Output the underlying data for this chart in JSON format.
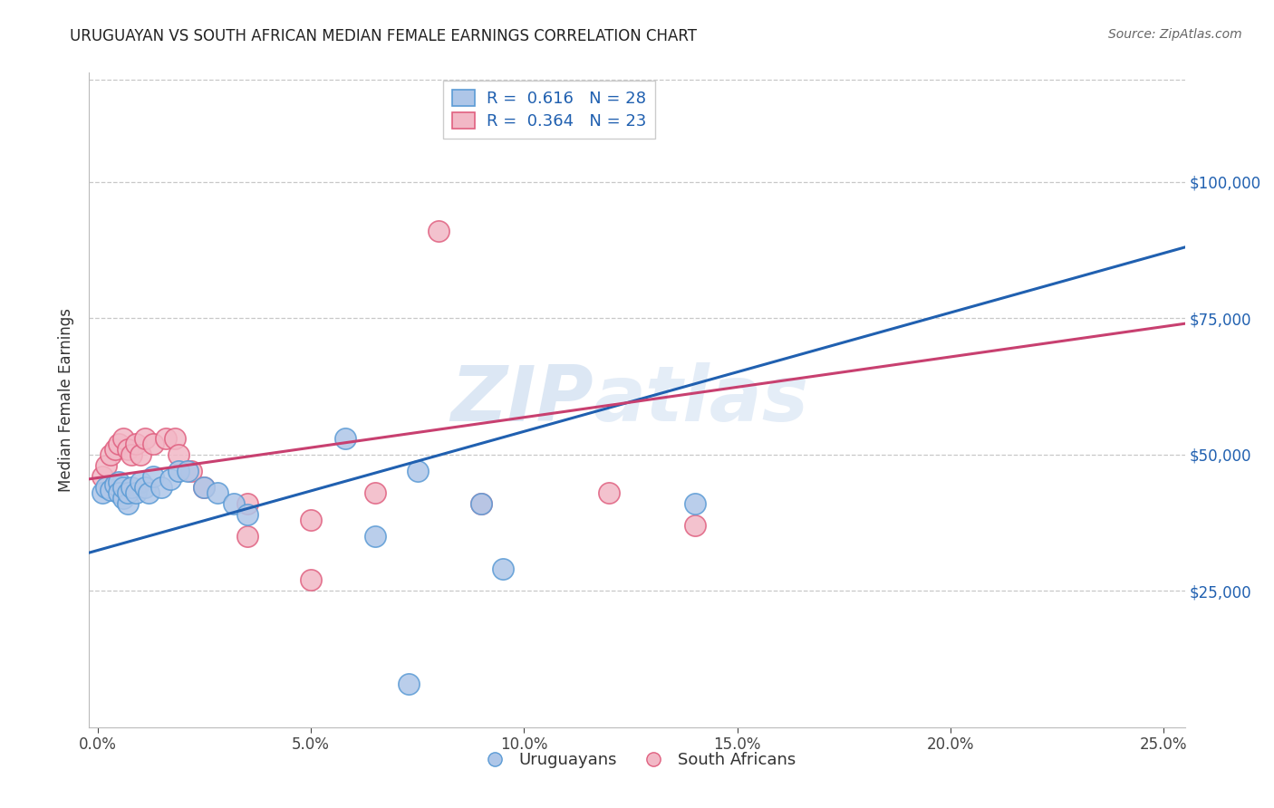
{
  "title": "URUGUAYAN VS SOUTH AFRICAN MEDIAN FEMALE EARNINGS CORRELATION CHART",
  "source": "Source: ZipAtlas.com",
  "ylabel": "Median Female Earnings",
  "xlabel_ticks": [
    "0.0%",
    "5.0%",
    "10.0%",
    "15.0%",
    "20.0%",
    "25.0%"
  ],
  "xlabel_vals": [
    0.0,
    0.05,
    0.1,
    0.15,
    0.2,
    0.25
  ],
  "ytick_labels": [
    "$25,000",
    "$50,000",
    "$75,000",
    "$100,000"
  ],
  "ytick_vals": [
    25000,
    50000,
    75000,
    100000
  ],
  "xlim": [
    -0.002,
    0.255
  ],
  "ylim": [
    0,
    120000
  ],
  "legend_label_uruguayans": "Uruguayans",
  "legend_label_south_africans": "South Africans",
  "blue_color": "#5b9bd5",
  "pink_color": "#e06080",
  "blue_fill": "#aec6e8",
  "pink_fill": "#f2b8c6",
  "line_blue": "#2060b0",
  "line_pink": "#c84070",
  "watermark_zip": "ZIP",
  "watermark_atlas": "atlas",
  "uruguayan_points": [
    [
      0.001,
      43000
    ],
    [
      0.002,
      44000
    ],
    [
      0.003,
      43500
    ],
    [
      0.004,
      44500
    ],
    [
      0.005,
      45000
    ],
    [
      0.005,
      43000
    ],
    [
      0.006,
      42000
    ],
    [
      0.006,
      44000
    ],
    [
      0.007,
      41000
    ],
    [
      0.007,
      43000
    ],
    [
      0.008,
      44000
    ],
    [
      0.009,
      43000
    ],
    [
      0.01,
      45000
    ],
    [
      0.011,
      44000
    ],
    [
      0.012,
      43000
    ],
    [
      0.013,
      46000
    ],
    [
      0.015,
      44000
    ],
    [
      0.017,
      45500
    ],
    [
      0.019,
      47000
    ],
    [
      0.021,
      47000
    ],
    [
      0.025,
      44000
    ],
    [
      0.028,
      43000
    ],
    [
      0.032,
      41000
    ],
    [
      0.035,
      39000
    ],
    [
      0.058,
      53000
    ],
    [
      0.075,
      47000
    ],
    [
      0.09,
      41000
    ],
    [
      0.14,
      41000
    ],
    [
      0.095,
      29000
    ],
    [
      0.065,
      35000
    ],
    [
      0.073,
      8000
    ]
  ],
  "south_african_points": [
    [
      0.001,
      46000
    ],
    [
      0.002,
      48000
    ],
    [
      0.003,
      50000
    ],
    [
      0.004,
      51000
    ],
    [
      0.005,
      52000
    ],
    [
      0.006,
      53000
    ],
    [
      0.007,
      51000
    ],
    [
      0.008,
      50000
    ],
    [
      0.009,
      52000
    ],
    [
      0.01,
      50000
    ],
    [
      0.011,
      53000
    ],
    [
      0.013,
      52000
    ],
    [
      0.016,
      53000
    ],
    [
      0.018,
      53000
    ],
    [
      0.019,
      50000
    ],
    [
      0.022,
      47000
    ],
    [
      0.025,
      44000
    ],
    [
      0.035,
      41000
    ],
    [
      0.05,
      38000
    ],
    [
      0.09,
      41000
    ],
    [
      0.12,
      43000
    ],
    [
      0.14,
      37000
    ],
    [
      0.08,
      91000
    ],
    [
      0.05,
      27000
    ],
    [
      0.065,
      43000
    ],
    [
      0.035,
      35000
    ]
  ],
  "blue_line_x": [
    -0.002,
    0.255
  ],
  "blue_line_y": [
    32000,
    88000
  ],
  "pink_line_x": [
    -0.002,
    0.255
  ],
  "pink_line_y": [
    45500,
    74000
  ],
  "background_color": "#ffffff",
  "grid_color": "#c8c8c8",
  "title_color": "#222222",
  "right_tick_color": "#2060b0",
  "legend_r_color": "#2060b0"
}
